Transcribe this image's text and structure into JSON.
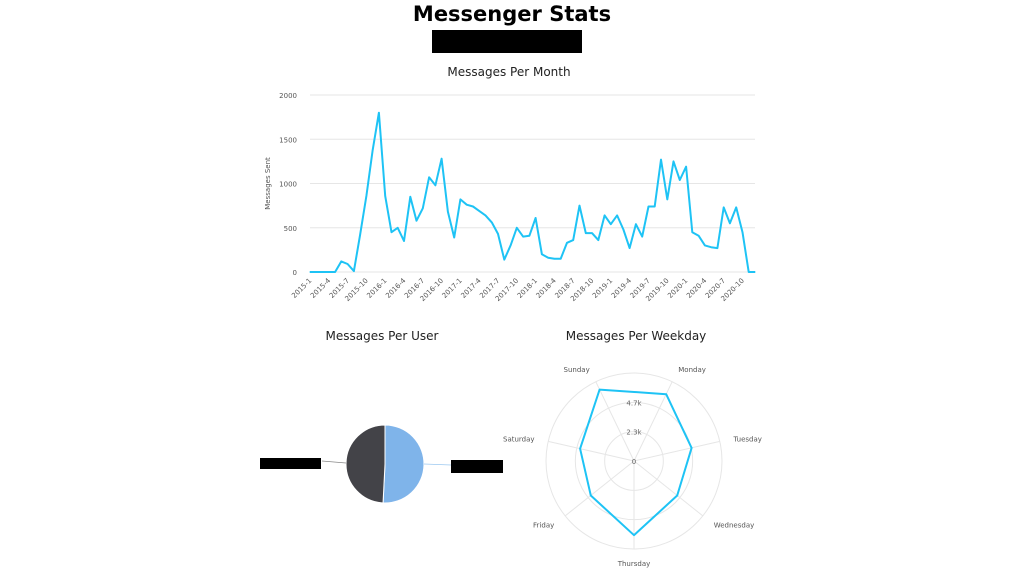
{
  "page": {
    "title": "Messenger Stats"
  },
  "colors": {
    "line": "#1ec3f5",
    "grid": "#e6e6e6",
    "pie_a": "#7fb4ea",
    "pie_b": "#434348",
    "redaction": "#000000"
  },
  "chart_data": [
    {
      "type": "line",
      "title": "Messages Per Month",
      "ylabel": "Messages Sent",
      "xlabel": "",
      "ylim": [
        0,
        2000
      ],
      "yticks": [
        0,
        500,
        1000,
        1500,
        2000
      ],
      "grid": true,
      "x_tick_labels": [
        "2015-1",
        "2015-4",
        "2015-7",
        "2015-10",
        "2016-1",
        "2016-4",
        "2016-7",
        "2016-10",
        "2017-1",
        "2017-4",
        "2017-7",
        "2017-10",
        "2018-1",
        "2018-4",
        "2018-7",
        "2018-10",
        "2019-1",
        "2019-4",
        "2019-7",
        "2019-10",
        "2020-1",
        "2020-4",
        "2020-7",
        "2020-10"
      ],
      "x": [
        "2015-1",
        "2015-2",
        "2015-3",
        "2015-4",
        "2015-5",
        "2015-6",
        "2015-7",
        "2015-8",
        "2015-9",
        "2015-10",
        "2015-11",
        "2015-12",
        "2016-1",
        "2016-2",
        "2016-3",
        "2016-4",
        "2016-5",
        "2016-6",
        "2016-7",
        "2016-8",
        "2016-9",
        "2016-10",
        "2016-11",
        "2016-12",
        "2017-1",
        "2017-2",
        "2017-3",
        "2017-4",
        "2017-5",
        "2017-6",
        "2017-7",
        "2017-8",
        "2017-9",
        "2017-10",
        "2017-11",
        "2017-12",
        "2018-1",
        "2018-2",
        "2018-3",
        "2018-4",
        "2018-5",
        "2018-6",
        "2018-7",
        "2018-8",
        "2018-9",
        "2018-10",
        "2018-11",
        "2018-12",
        "2019-1",
        "2019-2",
        "2019-3",
        "2019-4",
        "2019-5",
        "2019-6",
        "2019-7",
        "2019-8",
        "2019-9",
        "2019-10",
        "2019-11",
        "2019-12",
        "2020-1",
        "2020-2",
        "2020-3",
        "2020-4",
        "2020-5",
        "2020-6",
        "2020-7",
        "2020-8",
        "2020-9",
        "2020-10",
        "2020-11",
        "2020-12"
      ],
      "series": [
        {
          "values": [
            0,
            0,
            0,
            0,
            0,
            120,
            90,
            10,
            420,
            860,
            1380,
            1800,
            860,
            450,
            500,
            350,
            850,
            580,
            720,
            1070,
            980,
            1280,
            680,
            390,
            820,
            760,
            740,
            690,
            640,
            560,
            430,
            140,
            300,
            500,
            400,
            410,
            610,
            200,
            160,
            150,
            150,
            330,
            360,
            750,
            440,
            440,
            360,
            640,
            540,
            640,
            480,
            270,
            540,
            400,
            740,
            740,
            1270,
            820,
            1250,
            1040,
            1190,
            450,
            410,
            300,
            280,
            270,
            730,
            550,
            730,
            450,
            0,
            0
          ]
        }
      ]
    },
    {
      "type": "pie",
      "title": "Messages Per User",
      "slices": [
        {
          "label": "",
          "value": 50.8
        },
        {
          "label": "",
          "value": 49.2
        }
      ]
    },
    {
      "type": "radar",
      "title": "Messages Per Weekday",
      "categories": [
        "Sunday",
        "Monday",
        "Tuesday",
        "Wednesday",
        "Thursday",
        "Friday",
        "Saturday"
      ],
      "rings": [
        "0",
        "2.3k",
        "4.7k"
      ],
      "max": 7000,
      "values": [
        6300,
        5900,
        4700,
        4400,
        5900,
        4400,
        4400
      ]
    }
  ]
}
